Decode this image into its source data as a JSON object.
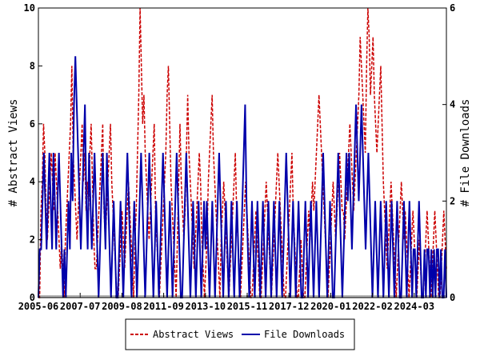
{
  "chart_data": {
    "type": "line",
    "x_tick_labels": [
      "2005-06",
      "2007-07",
      "2009-08",
      "2011-09",
      "2013-10",
      "2015-11",
      "2017-12",
      "2020-01",
      "2022-02",
      "2024-03"
    ],
    "y_left_label": "# Abstract Views",
    "y_right_label": "# File Downloads",
    "y_left_ticks": [
      "0",
      "2",
      "4",
      "6",
      "8",
      "10"
    ],
    "y_right_ticks": [
      "0",
      "2",
      "4",
      "6"
    ],
    "y_left_range": [
      0,
      10
    ],
    "y_right_range": [
      0,
      6
    ],
    "x_range": [
      "2005-06",
      "2025-02"
    ],
    "grid": false,
    "legend_position": "bottom",
    "series": [
      {
        "name": "Abstract Views",
        "axis": "left",
        "color": "#cc0000",
        "dash": "dashed",
        "values": [
          0,
          0,
          3,
          4,
          6,
          5,
          3,
          2,
          3,
          4,
          5,
          4,
          3,
          5,
          4,
          3,
          2,
          1,
          2,
          1,
          0,
          2,
          3,
          4,
          5,
          6,
          8,
          5,
          4,
          3,
          2,
          3,
          4,
          5,
          6,
          4,
          5,
          3,
          4,
          3,
          5,
          6,
          4,
          2,
          1,
          1,
          2,
          3,
          4,
          5,
          6,
          3,
          2,
          3,
          4,
          5,
          6,
          4,
          3,
          2,
          1,
          0,
          0,
          1,
          2,
          3,
          2,
          1,
          2,
          3,
          4,
          3,
          2,
          1,
          0,
          2,
          3,
          5,
          7,
          10,
          8,
          6,
          7,
          5,
          4,
          3,
          2,
          3,
          4,
          5,
          6,
          3,
          2,
          1,
          0,
          1,
          2,
          3,
          4,
          5,
          7,
          8,
          6,
          4,
          3,
          2,
          1,
          0,
          2,
          4,
          6,
          4,
          3,
          2,
          3,
          5,
          7,
          5,
          4,
          3,
          2,
          1,
          2,
          3,
          4,
          5,
          4,
          2,
          1,
          0,
          1,
          2,
          4,
          5,
          6,
          7,
          5,
          4,
          3,
          2,
          1,
          0,
          2,
          3,
          4,
          3,
          2,
          1,
          0,
          1,
          2,
          3,
          4,
          5,
          3,
          2,
          1,
          0,
          1,
          2,
          3,
          4,
          3,
          2,
          1,
          0,
          0,
          1,
          2,
          3,
          2,
          1,
          0,
          0,
          1,
          2,
          3,
          4,
          3,
          2,
          1,
          0,
          1,
          2,
          3,
          4,
          5,
          4,
          3,
          2,
          1,
          0,
          0,
          1,
          2,
          3,
          4,
          5,
          3,
          2,
          1,
          0,
          0,
          1,
          2,
          1,
          0,
          0,
          1,
          2,
          3,
          2,
          3,
          4,
          3,
          4,
          5,
          6,
          7,
          6,
          5,
          4,
          3,
          2,
          1,
          0,
          1,
          2,
          3,
          4,
          3,
          2,
          3,
          4,
          5,
          4,
          3,
          3,
          2,
          3,
          4,
          5,
          6,
          5,
          4,
          3,
          4,
          5,
          6,
          7,
          9,
          8,
          7,
          6,
          5,
          8,
          10,
          9,
          7,
          8,
          9,
          7,
          6,
          5,
          6,
          7,
          8,
          6,
          4,
          3,
          2,
          1,
          2,
          3,
          4,
          3,
          2,
          1,
          0,
          1,
          2,
          3,
          4,
          3,
          2,
          3,
          2,
          1,
          0,
          1,
          2,
          3,
          2,
          1,
          0,
          1,
          2,
          1,
          0,
          0,
          1,
          2,
          3,
          2,
          1,
          0,
          1,
          2,
          3,
          2,
          1,
          0,
          0,
          1,
          2,
          3,
          2,
          1
        ]
      },
      {
        "name": "File Downloads",
        "axis": "right",
        "color": "#0000aa",
        "dash": "solid",
        "values": [
          0,
          1,
          1,
          2,
          3,
          2,
          1,
          2,
          3,
          2,
          1,
          3,
          2,
          1,
          2,
          3,
          2,
          1,
          0,
          1,
          0,
          1,
          2,
          1,
          3,
          2,
          4,
          5,
          4,
          3,
          2,
          1,
          2,
          3,
          4,
          2,
          1,
          3,
          2,
          1,
          2,
          3,
          2,
          1,
          0,
          1,
          2,
          3,
          2,
          1,
          3,
          2,
          1,
          0,
          1,
          2,
          1,
          0,
          0,
          1,
          2,
          1,
          0,
          1,
          2,
          3,
          2,
          1,
          0,
          1,
          2,
          1,
          0,
          1,
          2,
          3,
          2,
          1,
          0,
          1,
          2,
          3,
          2,
          1,
          0,
          1,
          2,
          1,
          0,
          1,
          2,
          3,
          2,
          1,
          0,
          1,
          2,
          1,
          0,
          1,
          2,
          3,
          2,
          1,
          0,
          0,
          1,
          2,
          3,
          2,
          1,
          0,
          1,
          2,
          1,
          0,
          1,
          2,
          1,
          0,
          1,
          2,
          1,
          2,
          1,
          0,
          1,
          2,
          1,
          0,
          1,
          2,
          3,
          2,
          1,
          0,
          1,
          2,
          1,
          0,
          1,
          2,
          1,
          0,
          1,
          2,
          1,
          0,
          1,
          2,
          3,
          4,
          2,
          1,
          0,
          1,
          2,
          1,
          0,
          1,
          2,
          1,
          0,
          1,
          2,
          1,
          0,
          1,
          2,
          1,
          0,
          1,
          2,
          1,
          0,
          1,
          2,
          1,
          0,
          1,
          2,
          3,
          2,
          1,
          0,
          1,
          2,
          1,
          0,
          1,
          2,
          1,
          0,
          0,
          1,
          2,
          1,
          0,
          1,
          2,
          1,
          0,
          1,
          2,
          1,
          0,
          1,
          2,
          3,
          2,
          1,
          0,
          1,
          2,
          1,
          0,
          0,
          1,
          2,
          3,
          2,
          1,
          0,
          1,
          2,
          3,
          2,
          3,
          2,
          1,
          2,
          3,
          4,
          3,
          2,
          3,
          4,
          3,
          2,
          1,
          2,
          3,
          2,
          1,
          0,
          1,
          2,
          1,
          0,
          1,
          2,
          1,
          0,
          1,
          2,
          1,
          0,
          1,
          2,
          1,
          0,
          1,
          2,
          1,
          0,
          0,
          1,
          2,
          1,
          0,
          1,
          2,
          1,
          0,
          1,
          1,
          0,
          1,
          2,
          1,
          0,
          0,
          1,
          0,
          1,
          1,
          0,
          1,
          0,
          1,
          0,
          1,
          1,
          0,
          1,
          0,
          0,
          1,
          0
        ]
      }
    ]
  }
}
